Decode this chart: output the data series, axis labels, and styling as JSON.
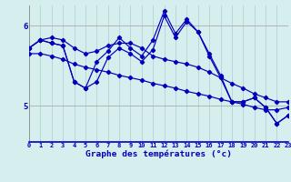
{
  "xlabel": "Graphe des températures (°c)",
  "background_color": "#d6eeee",
  "line_color": "#0000bb",
  "grid_color_v": "#b0d4d4",
  "grid_color_h": "#aaaaaa",
  "yticks": [
    5,
    6
  ],
  "ylim": [
    4.55,
    6.25
  ],
  "xlim": [
    0,
    23
  ],
  "xtick_labels": [
    "0",
    "1",
    "2",
    "3",
    "4",
    "5",
    "6",
    "7",
    "8",
    "9",
    "10",
    "11",
    "12",
    "13",
    "14",
    "15",
    "16",
    "17",
    "18",
    "19",
    "20",
    "21",
    "22",
    "23"
  ],
  "line1": [
    5.72,
    5.82,
    5.85,
    5.82,
    5.72,
    5.65,
    5.68,
    5.75,
    5.78,
    5.78,
    5.72,
    5.62,
    5.58,
    5.55,
    5.52,
    5.48,
    5.42,
    5.35,
    5.28,
    5.22,
    5.15,
    5.1,
    5.05,
    5.05
  ],
  "line2": [
    5.65,
    5.65,
    5.62,
    5.58,
    5.52,
    5.48,
    5.45,
    5.42,
    5.38,
    5.35,
    5.32,
    5.28,
    5.25,
    5.22,
    5.18,
    5.15,
    5.12,
    5.08,
    5.05,
    5.02,
    4.98,
    4.95,
    4.95,
    4.98
  ],
  "line3": [
    5.72,
    5.82,
    5.78,
    5.75,
    5.3,
    5.22,
    5.3,
    5.6,
    5.72,
    5.65,
    5.55,
    5.7,
    6.12,
    5.85,
    6.05,
    5.92,
    5.65,
    5.38,
    5.05,
    5.05,
    5.1,
    4.98,
    4.78,
    4.88
  ],
  "line4": [
    5.72,
    5.82,
    5.78,
    5.75,
    5.3,
    5.22,
    5.55,
    5.68,
    5.85,
    5.72,
    5.62,
    5.82,
    6.18,
    5.9,
    6.08,
    5.92,
    5.62,
    5.35,
    5.05,
    5.05,
    5.1,
    4.98,
    4.78,
    4.88
  ]
}
